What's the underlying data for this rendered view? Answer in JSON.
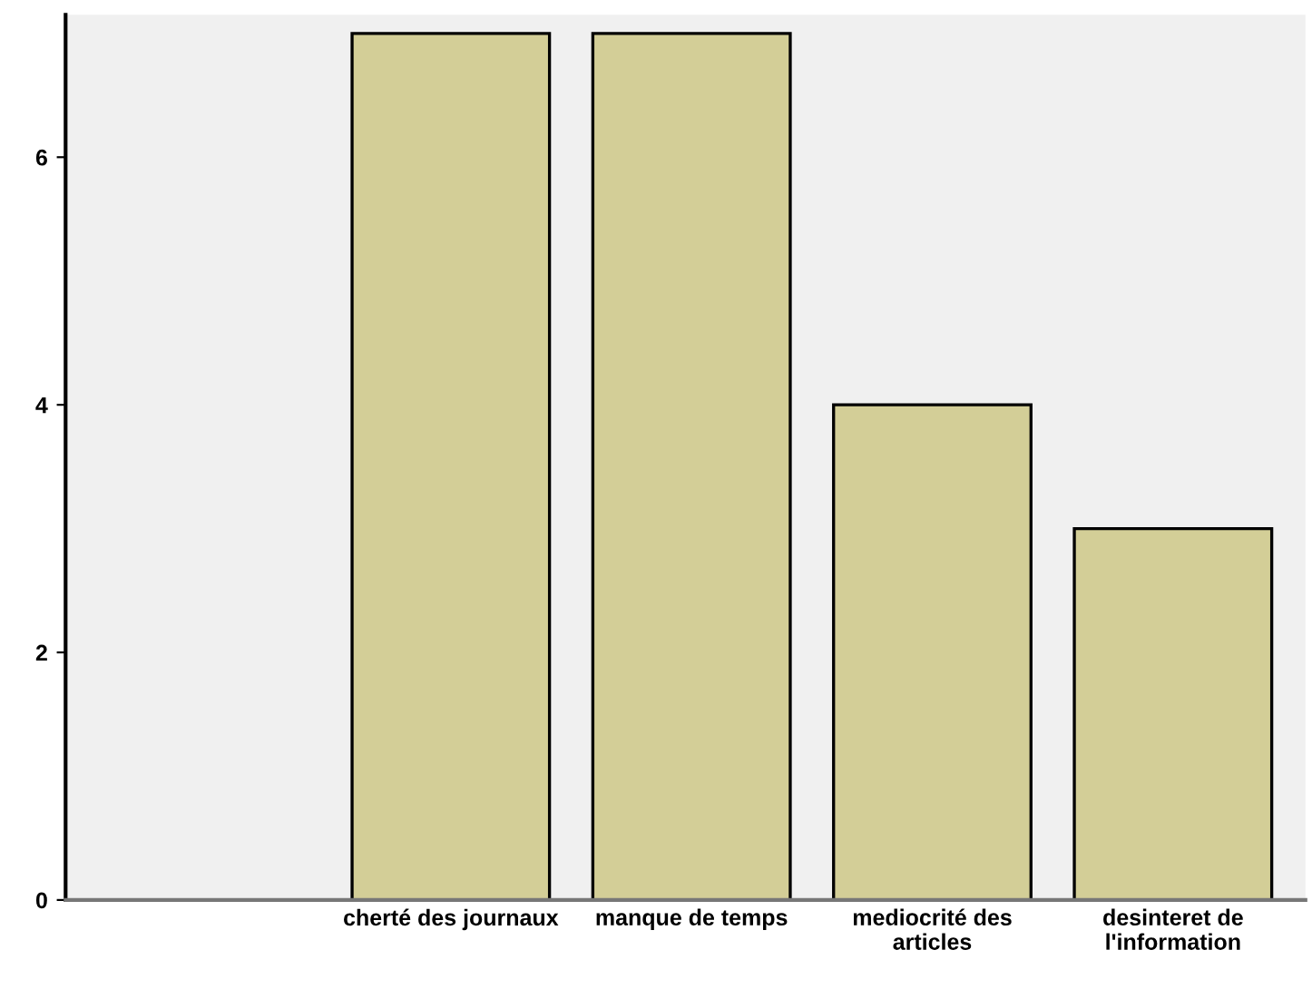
{
  "chart_data": {
    "type": "bar",
    "categories": [
      null,
      "cherté des journaux",
      "manque de temps",
      "mediocrité des\narticles",
      "desinteret de\nl'information"
    ],
    "values": [
      null,
      7,
      7,
      4,
      3
    ],
    "color": "#d3ce97",
    "ylim": [
      0,
      7.15
    ],
    "yticks": [
      0,
      2,
      4,
      6
    ],
    "grid": false
  }
}
